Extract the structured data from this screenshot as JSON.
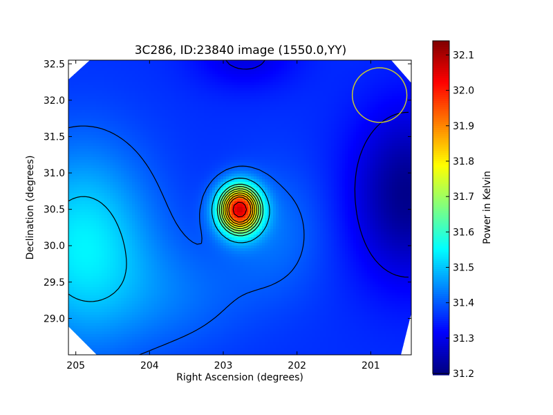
{
  "chart_data": {
    "type": "heatmap",
    "title": "3C286, ID:23840 image (1550.0,YY)",
    "xlabel": "Right Ascension (degrees)",
    "ylabel": "Declination (degrees)",
    "colorbar_label": "Power in Kelvin",
    "xlim": [
      205.1,
      200.45
    ],
    "ylim": [
      28.5,
      32.55
    ],
    "x_ticks": [
      205,
      204,
      203,
      202,
      201
    ],
    "x_tick_labels": [
      "205",
      "204",
      "203",
      "202",
      "201"
    ],
    "y_ticks": [
      29.0,
      29.5,
      30.0,
      30.5,
      31.0,
      31.5,
      32.0,
      32.5
    ],
    "y_tick_labels": [
      "29.0",
      "29.5",
      "30.0",
      "30.5",
      "31.0",
      "31.5",
      "32.0",
      "32.5"
    ],
    "colorbar_range": [
      31.2,
      32.14
    ],
    "colorbar_ticks": [
      31.2,
      31.3,
      31.4,
      31.5,
      31.6,
      31.7,
      31.8,
      31.9,
      32.0,
      32.1
    ],
    "colorbar_tick_labels": [
      "31.2",
      "31.3",
      "31.4",
      "31.5",
      "31.6",
      "31.7",
      "31.8",
      "31.9",
      "32.0",
      "32.1"
    ],
    "colormap": "jet",
    "contour_color": "#000000",
    "peak": {
      "ra": 202.78,
      "dec": 30.5,
      "value": 32.12
    },
    "beam_circle": {
      "ra": 200.88,
      "dec": 32.07,
      "radius_deg": 0.37,
      "color": "#c8c832"
    },
    "field_corners_clipped": true
  }
}
